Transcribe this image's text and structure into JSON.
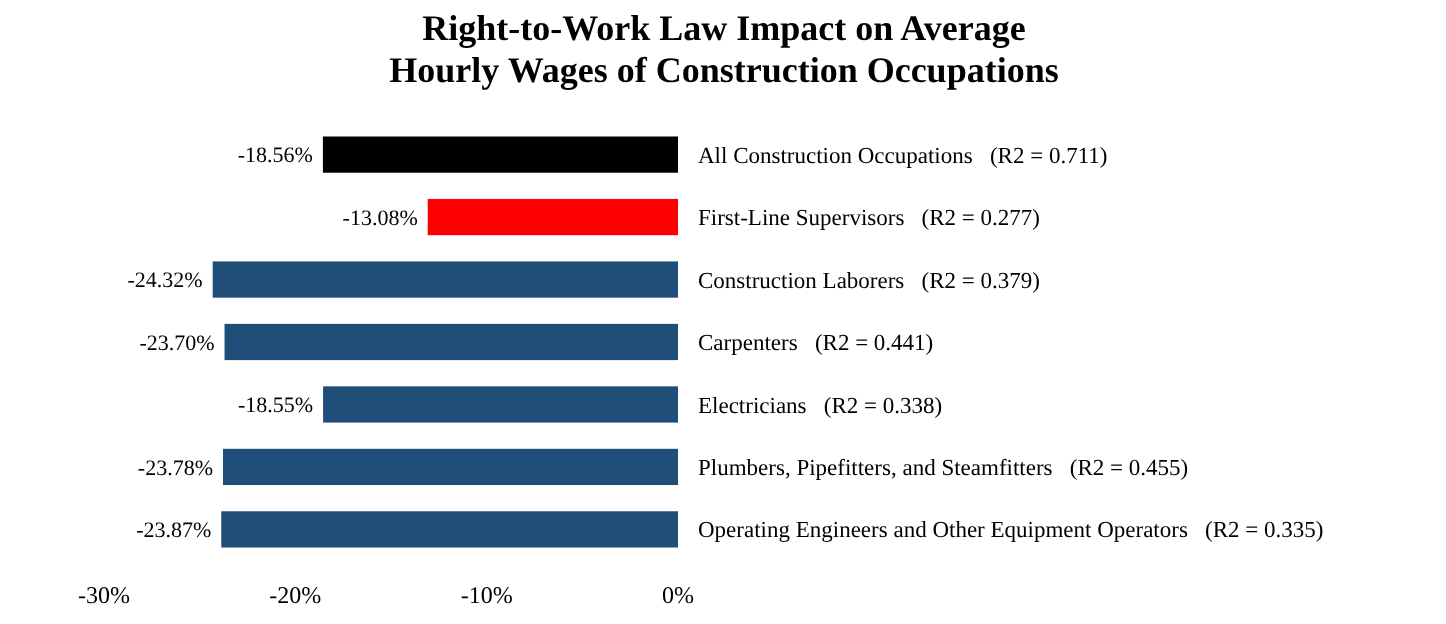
{
  "chart_data": {
    "type": "bar",
    "orientation": "horizontal",
    "title": "Right-to-Work Law Impact on Average Hourly Wages of Construction Occupations",
    "categories": [
      "All Construction Occupations   (R2 = 0.711)",
      "First-Line Supervisors   (R2 = 0.277)",
      "Construction Laborers   (R2 = 0.379)",
      "Carpenters   (R2 = 0.441)",
      "Electricians   (R2 = 0.338)",
      "Plumbers, Pipefitters, and Steamfitters   (R2 = 0.455)",
      "Operating Engineers and Other Equipment Operators   (R2 = 0.335)"
    ],
    "values": [
      -18.56,
      -13.08,
      -24.32,
      -23.7,
      -18.55,
      -23.78,
      -23.87
    ],
    "colors": [
      "#000000",
      "#ff0000",
      "#1f4e79",
      "#1f4e79",
      "#1f4e79",
      "#1f4e79",
      "#1f4e79"
    ],
    "value_labels": [
      "-18.56%",
      "-13.08%",
      "-24.32%",
      "-23.70%",
      "-18.55%",
      "-23.78%",
      "-23.87%"
    ],
    "xlim": [
      -30,
      0
    ],
    "xticks": [
      {
        "value": -30,
        "label": "-30%"
      },
      {
        "value": -20,
        "label": "-20%"
      },
      {
        "value": -10,
        "label": "-10%"
      },
      {
        "value": 0,
        "label": "0%"
      }
    ],
    "grid": false
  }
}
